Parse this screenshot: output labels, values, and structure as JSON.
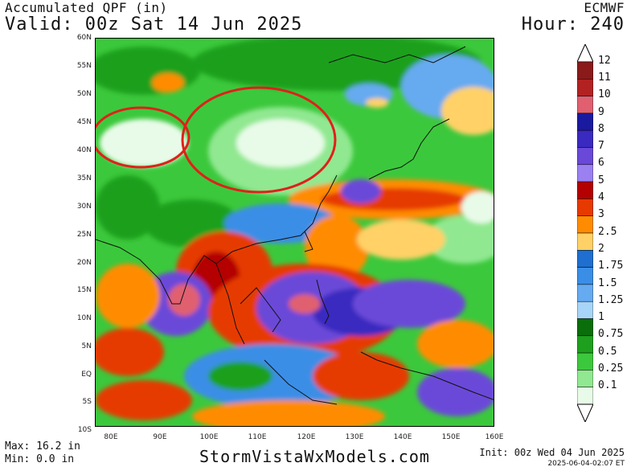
{
  "header": {
    "title": "Accumulated QPF (in)",
    "valid": "Valid: 00z Sat 14 Jun 2025",
    "model": "ECMWF",
    "hour": "Hour: 240"
  },
  "axes": {
    "lat_labels": [
      "60N",
      "55N",
      "50N",
      "45N",
      "40N",
      "35N",
      "30N",
      "25N",
      "20N",
      "15N",
      "10N",
      "5N",
      "EQ",
      "5S",
      "10S"
    ],
    "lon_labels": [
      "80E",
      "90E",
      "100E",
      "110E",
      "120E",
      "130E",
      "140E",
      "150E",
      "160E"
    ]
  },
  "colorbar": {
    "labels": [
      "12",
      "11",
      "10",
      "9",
      "8",
      "7",
      "6",
      "5",
      "4",
      "3",
      "2.5",
      "2",
      "1.75",
      "1.5",
      "1.25",
      "1",
      "0.75",
      "0.5",
      "0.25",
      "0.1"
    ],
    "colors": [
      "#8b1a1a",
      "#b22222",
      "#e06070",
      "#1a1aa0",
      "#3a2ac0",
      "#6a48d8",
      "#9a80f0",
      "#b40000",
      "#e63a00",
      "#ff8c00",
      "#ffd166",
      "#1e6fd0",
      "#3a8ee6",
      "#66aaf0",
      "#a8d4f8",
      "#0a6e0a",
      "#1ea01e",
      "#3cc83c",
      "#90e890",
      "#e8fbe8"
    ]
  },
  "stats": {
    "max": "Max: 16.2 in",
    "min": "Min: 0.0 in"
  },
  "footer": {
    "site": "StormVistaWxModels.com",
    "init": "Init: 00z Wed 04 Jun 2025",
    "timestamp": "2025-06-04-02:07 ET"
  },
  "annotations": [
    "red-ellipse-west",
    "red-ellipse-north-china"
  ]
}
